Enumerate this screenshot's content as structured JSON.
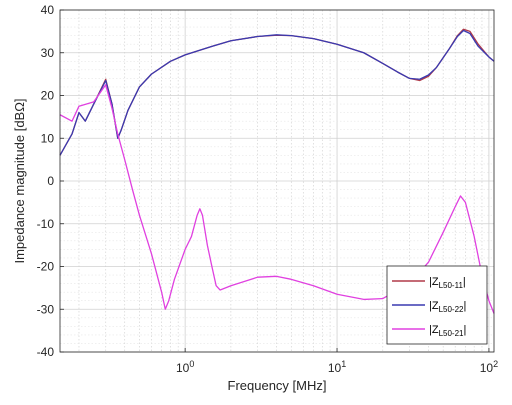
{
  "chart_data": {
    "type": "line",
    "xlabel": "Frequency [MHz]",
    "ylabel": "Impedance magnitude [dBΩ]",
    "xscale": "log",
    "xlim": [
      0.15,
      108
    ],
    "ylim": [
      -40,
      40
    ],
    "yticks": [
      -40,
      -30,
      -20,
      -10,
      0,
      10,
      20,
      30,
      40
    ],
    "xticks": [
      {
        "value": 1,
        "base": "10",
        "exp": "0"
      },
      {
        "value": 10,
        "base": "10",
        "exp": "1"
      },
      {
        "value": 100,
        "base": "10",
        "exp": "2"
      }
    ],
    "grid": "major and minor",
    "legend_position": "bottom-right",
    "series": [
      {
        "name": "|Z_L50-11|",
        "legend": {
          "prefix": "|Z",
          "sub": "L50-11",
          "suffix": "|"
        },
        "color": "#b03a48",
        "points": [
          [
            0.15,
            6
          ],
          [
            0.18,
            11
          ],
          [
            0.2,
            16
          ],
          [
            0.22,
            14
          ],
          [
            0.25,
            18
          ],
          [
            0.3,
            23.8
          ],
          [
            0.33,
            18
          ],
          [
            0.36,
            10
          ],
          [
            0.38,
            12
          ],
          [
            0.42,
            16.5
          ],
          [
            0.5,
            22
          ],
          [
            0.6,
            25
          ],
          [
            0.8,
            28
          ],
          [
            1,
            29.5
          ],
          [
            1.5,
            31.5
          ],
          [
            2,
            32.8
          ],
          [
            3,
            33.8
          ],
          [
            4,
            34.1
          ],
          [
            5,
            34
          ],
          [
            7,
            33.3
          ],
          [
            10,
            32
          ],
          [
            15,
            30
          ],
          [
            20,
            27.5
          ],
          [
            25,
            25.5
          ],
          [
            30,
            24
          ],
          [
            35,
            23.5
          ],
          [
            40,
            24.5
          ],
          [
            45,
            26.5
          ],
          [
            55,
            31
          ],
          [
            62,
            34
          ],
          [
            68,
            35.5
          ],
          [
            75,
            35
          ],
          [
            85,
            32
          ],
          [
            100,
            29
          ],
          [
            108,
            28
          ]
        ]
      },
      {
        "name": "|Z_L50-22|",
        "legend": {
          "prefix": "|Z",
          "sub": "L50-22",
          "suffix": "|"
        },
        "color": "#3a3ab0",
        "points": [
          [
            0.15,
            6
          ],
          [
            0.18,
            11
          ],
          [
            0.2,
            16
          ],
          [
            0.22,
            14
          ],
          [
            0.25,
            18
          ],
          [
            0.3,
            23.5
          ],
          [
            0.33,
            18
          ],
          [
            0.36,
            10
          ],
          [
            0.38,
            12
          ],
          [
            0.42,
            16.5
          ],
          [
            0.5,
            22
          ],
          [
            0.6,
            25
          ],
          [
            0.8,
            28
          ],
          [
            1,
            29.5
          ],
          [
            1.5,
            31.5
          ],
          [
            2,
            32.8
          ],
          [
            3,
            33.8
          ],
          [
            4,
            34.2
          ],
          [
            5,
            34
          ],
          [
            7,
            33.3
          ],
          [
            10,
            32
          ],
          [
            15,
            30
          ],
          [
            20,
            27.5
          ],
          [
            25,
            25.5
          ],
          [
            30,
            24
          ],
          [
            35,
            23.8
          ],
          [
            40,
            24.8
          ],
          [
            45,
            26.5
          ],
          [
            55,
            31
          ],
          [
            62,
            33.8
          ],
          [
            68,
            35.2
          ],
          [
            75,
            34.5
          ],
          [
            85,
            31.5
          ],
          [
            100,
            29
          ],
          [
            108,
            28
          ]
        ]
      },
      {
        "name": "|Z_L50-21|",
        "legend": {
          "prefix": "|Z",
          "sub": "L50-21",
          "suffix": "|"
        },
        "color": "#e040e0",
        "points": [
          [
            0.15,
            15.5
          ],
          [
            0.18,
            14
          ],
          [
            0.2,
            17.5
          ],
          [
            0.25,
            18.5
          ],
          [
            0.3,
            22.5
          ],
          [
            0.33,
            17
          ],
          [
            0.36,
            11
          ],
          [
            0.4,
            5
          ],
          [
            0.45,
            -2
          ],
          [
            0.5,
            -8
          ],
          [
            0.6,
            -17
          ],
          [
            0.7,
            -26
          ],
          [
            0.74,
            -30
          ],
          [
            0.78,
            -28
          ],
          [
            0.85,
            -23
          ],
          [
            1,
            -16
          ],
          [
            1.1,
            -13
          ],
          [
            1.2,
            -8
          ],
          [
            1.25,
            -6.5
          ],
          [
            1.3,
            -8
          ],
          [
            1.4,
            -15
          ],
          [
            1.5,
            -20
          ],
          [
            1.6,
            -24.5
          ],
          [
            1.7,
            -25.5
          ],
          [
            2,
            -24.5
          ],
          [
            3,
            -22.5
          ],
          [
            4,
            -22.3
          ],
          [
            5,
            -23
          ],
          [
            7,
            -24.5
          ],
          [
            10,
            -26.5
          ],
          [
            15,
            -27.7
          ],
          [
            20,
            -27.5
          ],
          [
            30,
            -24
          ],
          [
            40,
            -19
          ],
          [
            50,
            -12
          ],
          [
            60,
            -6
          ],
          [
            65,
            -3.5
          ],
          [
            70,
            -5
          ],
          [
            80,
            -13
          ],
          [
            90,
            -22
          ],
          [
            100,
            -28
          ],
          [
            108,
            -31
          ]
        ]
      }
    ]
  }
}
